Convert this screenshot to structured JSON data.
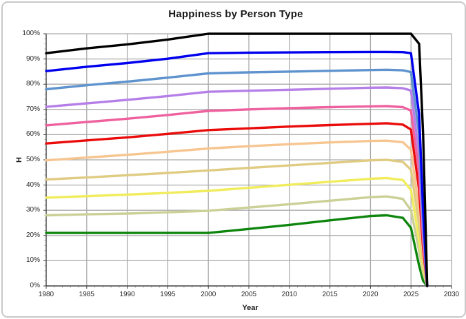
{
  "chart_data": {
    "type": "line",
    "title": "Happiness by Person Type",
    "xlabel": "Year",
    "ylabel": "H",
    "xlim": [
      1980,
      2030
    ],
    "ylim": [
      0,
      100
    ],
    "x_tick_labels": [
      "1980",
      "1985",
      "1990",
      "1995",
      "2000",
      "2005",
      "2010",
      "2015",
      "2020",
      "2025",
      "2030"
    ],
    "y_tick_labels": [
      "0%",
      "10%",
      "20%",
      "30%",
      "40%",
      "50%",
      "60%",
      "70%",
      "80%",
      "90%",
      "100%"
    ],
    "grid": true,
    "legend": false,
    "background_color": "#ffffff",
    "frame_border_color": "#c8c8c8",
    "gridline_color": "#ababab",
    "axis_color": "#404040",
    "minor_tick_color": "#ababab",
    "tick_label_color": "#262626",
    "minor_tick_step_x_years": 1,
    "minor_tick_step_y_percent": 2,
    "x": [
      1980,
      1985,
      1990,
      1995,
      2000,
      2005,
      2010,
      2015,
      2020,
      2022,
      2024,
      2025,
      2026,
      2026.5,
      2027
    ],
    "series": [
      {
        "name": "black",
        "color": "#000000",
        "values": [
          92.3,
          94.2,
          95.8,
          97.7,
          100,
          100,
          100,
          100,
          100,
          100,
          100,
          100,
          96,
          60,
          0
        ]
      },
      {
        "name": "blue",
        "color": "#0000ee",
        "values": [
          85.2,
          86.9,
          88.4,
          90.1,
          92.3,
          92.5,
          92.6,
          92.7,
          92.8,
          92.8,
          92.7,
          92.3,
          68,
          30,
          0
        ]
      },
      {
        "name": "steel-blue",
        "color": "#5e93ce",
        "values": [
          78.0,
          79.6,
          81.0,
          82.6,
          84.3,
          84.7,
          85.0,
          85.3,
          85.6,
          85.7,
          85.5,
          84.8,
          60,
          26,
          0
        ]
      },
      {
        "name": "purple",
        "color": "#b67fe8",
        "values": [
          71.0,
          72.4,
          73.8,
          75.3,
          77.0,
          77.4,
          77.8,
          78.2,
          78.6,
          78.7,
          78.4,
          77.5,
          52,
          22,
          0
        ]
      },
      {
        "name": "pink",
        "color": "#ee619e",
        "values": [
          63.7,
          65.0,
          66.3,
          67.8,
          69.4,
          70.0,
          70.5,
          70.9,
          71.2,
          71.3,
          70.9,
          69.5,
          45,
          18,
          0
        ]
      },
      {
        "name": "red",
        "color": "#ea0b0b",
        "values": [
          56.5,
          57.7,
          58.9,
          60.3,
          61.8,
          62.5,
          63.2,
          63.8,
          64.3,
          64.5,
          64.0,
          62.0,
          38,
          15,
          0
        ]
      },
      {
        "name": "peach",
        "color": "#f6c590",
        "values": [
          49.8,
          50.9,
          52.0,
          53.2,
          54.5,
          55.4,
          56.2,
          56.9,
          57.5,
          57.6,
          57.0,
          54.0,
          30,
          12,
          0
        ]
      },
      {
        "name": "tan",
        "color": "#e0cb82",
        "values": [
          42.2,
          43.0,
          43.9,
          44.8,
          45.8,
          46.8,
          47.8,
          48.8,
          49.8,
          50.0,
          49.2,
          46.0,
          24,
          9,
          0
        ]
      },
      {
        "name": "yellow",
        "color": "#f0ec5c",
        "values": [
          35.0,
          35.6,
          36.2,
          36.9,
          37.7,
          38.9,
          40.1,
          41.3,
          42.5,
          42.8,
          42.0,
          38.0,
          18,
          7,
          0
        ]
      },
      {
        "name": "olive",
        "color": "#cbd096",
        "values": [
          28.0,
          28.4,
          28.7,
          29.2,
          29.8,
          31.1,
          32.4,
          33.8,
          35.2,
          35.5,
          34.5,
          30.0,
          14,
          5,
          0
        ]
      },
      {
        "name": "green",
        "color": "#0e860e",
        "values": [
          21.0,
          21.0,
          21.0,
          21.0,
          21.0,
          22.6,
          24.2,
          26.0,
          27.7,
          28.0,
          27.0,
          23.0,
          8,
          2,
          0
        ]
      }
    ]
  }
}
